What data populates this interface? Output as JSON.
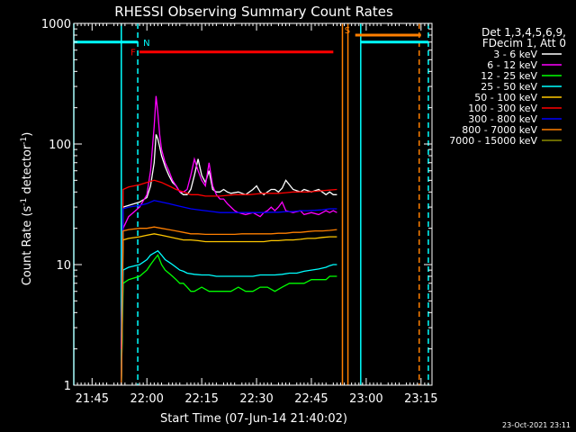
{
  "chart_data": {
    "type": "line",
    "title": "RHESSI Observing Summary Count Rates",
    "xlabel": "Start Time (07-Jun-14 21:40:02)",
    "ylabel_main": "Count Rate (s",
    "ylabel_sup1": "-1",
    "ylabel_mid": " detector",
    "ylabel_sup2": "-1",
    "ylabel_end": ")",
    "yscale": "log",
    "ylim": [
      1,
      1000
    ],
    "y_ticks": [
      {
        "value": 1,
        "label": "1"
      },
      {
        "value": 10,
        "label": "10"
      },
      {
        "value": 100,
        "label": "100"
      },
      {
        "value": 1000,
        "label": "1000"
      }
    ],
    "x_range_min": [
      0,
      98
    ],
    "x_ticks": [
      {
        "min": 5,
        "label": "21:45"
      },
      {
        "min": 20,
        "label": "22:00"
      },
      {
        "min": 35,
        "label": "22:15"
      },
      {
        "min": 50,
        "label": "22:30"
      },
      {
        "min": 65,
        "label": "22:45"
      },
      {
        "min": 80,
        "label": "23:00"
      },
      {
        "min": 95,
        "label": "23:15"
      }
    ],
    "legend_header": [
      "Det 1,3,4,5,6,9,",
      "FDecim 1, Att 0"
    ],
    "series": [
      {
        "name": "3 - 6 keV",
        "color": "#ffffff",
        "x": [
          13,
          13.5,
          15,
          18,
          20,
          21,
          22,
          22.5,
          23,
          23.5,
          24,
          25,
          26,
          27,
          28,
          29,
          30,
          31,
          32,
          33,
          34,
          35,
          36,
          37,
          38,
          39,
          40,
          41,
          42,
          43,
          45,
          47,
          49,
          50,
          51,
          52,
          53,
          54,
          55,
          56,
          57,
          58,
          60,
          62,
          63,
          65,
          67,
          69,
          70,
          71,
          72
        ],
        "y": [
          2,
          30,
          31,
          33,
          36,
          45,
          70,
          120,
          110,
          95,
          80,
          65,
          55,
          48,
          45,
          40,
          38,
          38,
          42,
          55,
          75,
          55,
          48,
          60,
          42,
          40,
          40,
          42,
          40,
          39,
          40,
          38,
          42,
          45,
          40,
          38,
          40,
          42,
          42,
          40,
          43,
          50,
          42,
          40,
          42,
          40,
          42,
          38,
          40,
          38,
          38
        ]
      },
      {
        "name": "6 - 12 keV",
        "color": "#ff00ff",
        "x": [
          13,
          13.5,
          15,
          18,
          20,
          21,
          22,
          22.5,
          23,
          23.5,
          24,
          25,
          26,
          27,
          28,
          29,
          30,
          31,
          32,
          33,
          34,
          35,
          36,
          37,
          38,
          39,
          40,
          41,
          42,
          43,
          44,
          45,
          47,
          49,
          50,
          51,
          52,
          53,
          54,
          55,
          56,
          57,
          58,
          60,
          62,
          63,
          65,
          67,
          69,
          70,
          71,
          72
        ],
        "y": [
          2,
          20,
          25,
          30,
          38,
          60,
          140,
          250,
          180,
          120,
          90,
          70,
          60,
          50,
          45,
          40,
          40,
          42,
          55,
          75,
          60,
          50,
          45,
          70,
          45,
          38,
          35,
          35,
          32,
          30,
          28,
          27,
          26,
          27,
          26,
          25,
          27,
          28,
          30,
          28,
          30,
          33,
          28,
          27,
          28,
          26,
          27,
          26,
          28,
          27,
          28,
          27
        ]
      },
      {
        "name": "12 - 25 keV",
        "color": "#00ff00",
        "x": [
          13,
          13.5,
          15,
          18,
          20,
          21,
          22,
          23,
          24,
          25,
          26,
          27,
          28,
          29,
          30,
          31,
          32,
          33,
          35,
          37,
          39,
          41,
          43,
          45,
          47,
          49,
          51,
          53,
          55,
          57,
          59,
          61,
          63,
          65,
          67,
          69,
          70,
          71,
          72
        ],
        "y": [
          1,
          7,
          7.5,
          8,
          9,
          10,
          11,
          12,
          10,
          9,
          8.5,
          8,
          7.5,
          7,
          7,
          6.5,
          6,
          6,
          6.5,
          6,
          6,
          6,
          6,
          6.5,
          6,
          6,
          6.5,
          6.5,
          6,
          6.5,
          7,
          7,
          7,
          7.5,
          7.5,
          7.5,
          8,
          8,
          8
        ]
      },
      {
        "name": "25 - 50 keV",
        "color": "#00ffff",
        "x": [
          13,
          13.5,
          15,
          18,
          20,
          21,
          22,
          23,
          24,
          25,
          26,
          27,
          28,
          29,
          30,
          31,
          33,
          35,
          37,
          39,
          41,
          43,
          45,
          47,
          49,
          51,
          53,
          55,
          57,
          59,
          61,
          63,
          65,
          67,
          69,
          70,
          71,
          72
        ],
        "y": [
          1,
          9,
          9.5,
          10,
          11,
          12,
          12.5,
          13,
          12,
          11,
          10.5,
          10,
          9.5,
          9,
          8.8,
          8.5,
          8.3,
          8.2,
          8.2,
          8,
          8,
          8,
          8,
          8,
          8,
          8.2,
          8.2,
          8.2,
          8.3,
          8.5,
          8.5,
          8.8,
          9,
          9.2,
          9.5,
          9.8,
          10,
          10
        ]
      },
      {
        "name": "50 - 100 keV",
        "color": "#ffc800",
        "x": [
          13,
          13.5,
          15,
          18,
          20,
          22,
          24,
          26,
          28,
          30,
          32,
          34,
          36,
          38,
          40,
          42,
          44,
          46,
          48,
          50,
          52,
          54,
          56,
          58,
          60,
          62,
          64,
          66,
          68,
          70,
          72
        ],
        "y": [
          1,
          16,
          16.5,
          17,
          17.5,
          18,
          17.5,
          17,
          16.5,
          16,
          16,
          15.8,
          15.5,
          15.5,
          15.5,
          15.5,
          15.5,
          15.5,
          15.5,
          15.5,
          15.5,
          15.8,
          15.8,
          16,
          16,
          16.2,
          16.5,
          16.5,
          16.8,
          17,
          17
        ]
      },
      {
        "name": "100 - 300 keV",
        "color": "#ff0000",
        "x": [
          13,
          13.5,
          15,
          18,
          20,
          22,
          24,
          26,
          28,
          30,
          32,
          34,
          36,
          38,
          40,
          42,
          44,
          46,
          48,
          50,
          52,
          54,
          56,
          58,
          60,
          62,
          64,
          66,
          68,
          70,
          72
        ],
        "y": [
          1,
          42,
          44,
          46,
          48,
          50,
          48,
          45,
          42,
          40,
          38,
          38,
          37,
          37,
          37,
          37.5,
          38,
          38,
          38,
          38.5,
          39,
          39,
          39,
          39.5,
          40,
          40,
          40,
          40.5,
          41,
          41.5,
          42
        ]
      },
      {
        "name": "300 - 800 keV",
        "color": "#0000ff",
        "x": [
          13,
          13.5,
          15,
          18,
          20,
          22,
          24,
          26,
          28,
          30,
          32,
          34,
          36,
          38,
          40,
          42,
          44,
          46,
          48,
          50,
          52,
          54,
          56,
          58,
          60,
          62,
          64,
          66,
          68,
          70,
          72
        ],
        "y": [
          1,
          29,
          30,
          31,
          32,
          34,
          33,
          32,
          31,
          30,
          29,
          28.5,
          28,
          27.5,
          27,
          27,
          27,
          27,
          27,
          27,
          27,
          27.2,
          27.2,
          27.5,
          27.5,
          28,
          28,
          28.2,
          28.5,
          29,
          29
        ]
      },
      {
        "name": "800 - 7000 keV",
        "color": "#ff7f00",
        "x": [
          13,
          13.5,
          15,
          18,
          20,
          22,
          24,
          26,
          28,
          30,
          32,
          34,
          36,
          38,
          40,
          42,
          44,
          46,
          48,
          50,
          52,
          54,
          56,
          58,
          60,
          62,
          64,
          66,
          68,
          70,
          72
        ],
        "y": [
          1,
          19,
          19.5,
          20,
          20,
          20.5,
          20,
          19.5,
          19,
          18.5,
          18,
          18,
          17.8,
          17.8,
          17.8,
          17.8,
          17.8,
          18,
          18,
          18,
          18,
          18,
          18.2,
          18.2,
          18.5,
          18.5,
          18.8,
          19,
          19,
          19.2,
          19.5
        ]
      },
      {
        "name": "7000 - 15000 keV",
        "color": "#8c8c00",
        "x": [],
        "y": []
      }
    ],
    "flags": [
      {
        "label": "N",
        "color": "#00ffff",
        "x_start": 0,
        "x_end": 17.5,
        "y": 700,
        "style": "solid"
      },
      {
        "label": "F",
        "color": "#ff0000",
        "x_start": 18,
        "x_end": 71,
        "y": 580,
        "style": "solid"
      },
      {
        "label": "S",
        "color": "#ff7f00",
        "x_start": 77,
        "x_end": 95,
        "y": 800,
        "style": "solid"
      },
      {
        "label": "",
        "color": "#00ffff",
        "x_start": 78.5,
        "x_end": 97,
        "y": 700,
        "style": "solid"
      }
    ],
    "vlines": [
      {
        "x": 0,
        "color": "#00ffff",
        "style": "solid"
      },
      {
        "x": 13,
        "color": "#00ffff",
        "style": "solid"
      },
      {
        "x": 17.5,
        "color": "#00ffff",
        "style": "dashed"
      },
      {
        "x": 73.5,
        "color": "#ff7f00",
        "style": "solid"
      },
      {
        "x": 75,
        "color": "#ff7f00",
        "style": "solid"
      },
      {
        "x": 78.5,
        "color": "#00ffff",
        "style": "solid"
      },
      {
        "x": 94.5,
        "color": "#ff7f00",
        "style": "dashed"
      },
      {
        "x": 97,
        "color": "#00ffff",
        "style": "dashed"
      }
    ],
    "timestamp": "23-Oct-2021 23:11"
  }
}
